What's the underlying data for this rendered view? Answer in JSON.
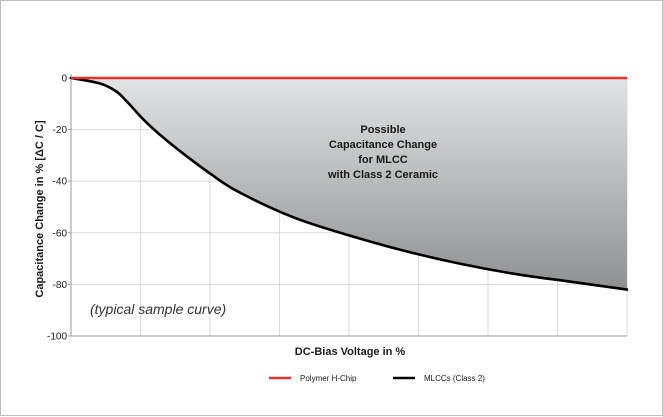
{
  "chart_data": {
    "type": "line",
    "title": "",
    "xlabel": "DC-Bias Voltage in %",
    "ylabel": "Capacitance Change in % [ΔC / C]",
    "ylim": [
      -100,
      0
    ],
    "yticks": [
      "0",
      "-20",
      "-40",
      "-60",
      "-80",
      "-100"
    ],
    "xlim": [
      0,
      100
    ],
    "grid": true,
    "legend_position": "bottom-center",
    "series": [
      {
        "name": "Polymer H-Chip",
        "color": "#e8302a",
        "x": [
          0,
          100
        ],
        "y": [
          0,
          0
        ]
      },
      {
        "name": "MLCCs (Class 2)",
        "color": "#000000",
        "x": [
          0,
          5,
          8,
          10,
          13,
          16,
          20,
          25,
          30,
          40,
          50,
          60,
          70,
          80,
          90,
          100
        ],
        "y": [
          0,
          -2,
          -5,
          -9,
          -16,
          -22,
          -29,
          -37,
          -44,
          -54,
          -61,
          -67,
          -72,
          -76,
          -79,
          -82
        ]
      }
    ],
    "shaded_region_label": [
      "Possible",
      "Capacitance Change",
      "for MLCC",
      "with Class 2 Ceramic"
    ],
    "annotation": "(typical sample curve)",
    "colors": {
      "fill_top": "#e2e3e4",
      "fill_bottom": "#8e9091",
      "grid": "#d9d9d9"
    }
  }
}
